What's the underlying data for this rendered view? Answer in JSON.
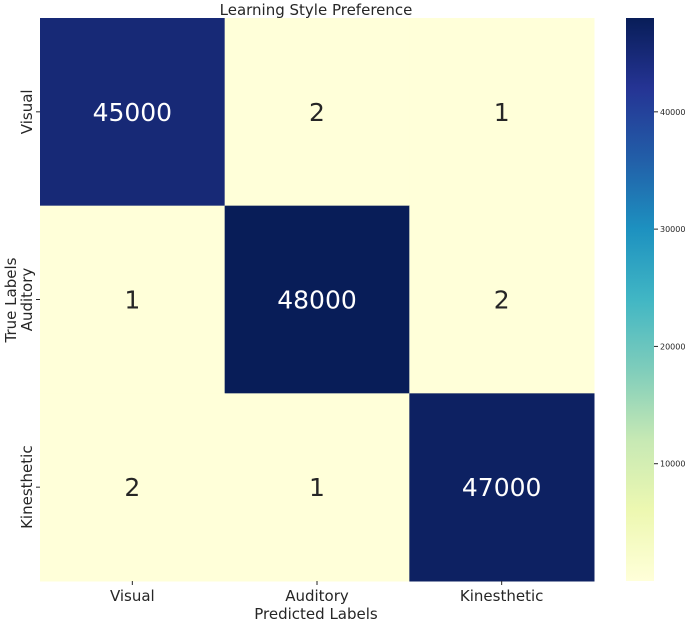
{
  "chart_data": {
    "type": "heatmap",
    "title": "Learning Style Preference",
    "xlabel": "Predicted Labels",
    "ylabel": "True Labels",
    "x_categories": [
      "Visual",
      "Auditory",
      "Kinesthetic"
    ],
    "y_categories": [
      "Visual",
      "Auditory",
      "Kinesthetic"
    ],
    "values": [
      [
        45000,
        2,
        1
      ],
      [
        1,
        48000,
        2
      ],
      [
        2,
        1,
        47000
      ]
    ],
    "colormap": "YlGnBu",
    "colorbar": {
      "min": 0,
      "max": 48000,
      "ticks": [
        10000,
        20000,
        30000,
        40000
      ],
      "tick_labels": [
        "10000",
        "20000",
        "30000",
        "40000"
      ]
    },
    "annotated": true
  }
}
